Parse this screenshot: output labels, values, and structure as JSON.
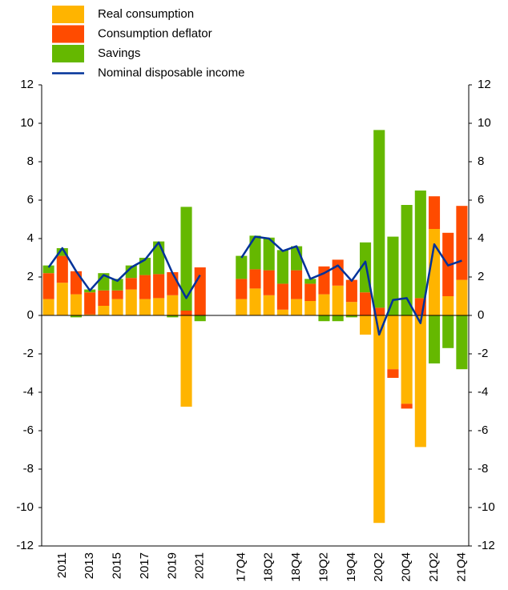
{
  "chart_data": {
    "type": "bar",
    "stacked": true,
    "categories": [
      null,
      "2011",
      null,
      "2013",
      null,
      "2015",
      null,
      "2017",
      null,
      "2019",
      null,
      "2021",
      null,
      null,
      "17Q4",
      null,
      "18Q2",
      null,
      "18Q4",
      null,
      "19Q2",
      null,
      "19Q4",
      null,
      "20Q2",
      null,
      "20Q4",
      null,
      "21Q2",
      null,
      "21Q4"
    ],
    "series": [
      {
        "name": "Real consumption",
        "type": "bar",
        "color": "#ffb400",
        "values": [
          0.85,
          1.7,
          1.1,
          0.05,
          0.5,
          0.85,
          1.35,
          0.85,
          0.9,
          1.05,
          -4.75,
          0,
          null,
          null,
          0.85,
          1.4,
          1.05,
          0.3,
          0.85,
          0.75,
          1.1,
          1.55,
          0.7,
          -1.0,
          -10.8,
          -2.8,
          -4.6,
          -6.85,
          4.5,
          1.0,
          1.85
        ]
      },
      {
        "name": "Consumption deflator",
        "type": "bar",
        "color": "#ff4b00",
        "values": [
          1.35,
          1.4,
          1.2,
          1.15,
          0.8,
          0.45,
          0.6,
          1.25,
          1.25,
          1.2,
          0.25,
          2.5,
          null,
          null,
          1.05,
          1.0,
          1.3,
          1.35,
          1.5,
          0.9,
          1.45,
          1.35,
          1.15,
          1.2,
          0.4,
          -0.45,
          -0.25,
          0.9,
          1.7,
          3.3,
          3.85
        ]
      },
      {
        "name": "Savings",
        "type": "bar",
        "color": "#65b800",
        "values": [
          0.4,
          0.4,
          -0.1,
          0.15,
          0.9,
          0.6,
          0.65,
          0.9,
          1.7,
          -0.1,
          5.4,
          -0.3,
          null,
          null,
          1.2,
          1.75,
          1.7,
          1.75,
          1.25,
          0.25,
          -0.3,
          -0.3,
          -0.1,
          2.6,
          9.25,
          4.1,
          5.75,
          5.6,
          -2.5,
          -1.7,
          -2.8
        ]
      },
      {
        "name": "Nominal disposable income",
        "type": "line",
        "color": "#003299",
        "values": [
          2.5,
          3.5,
          2.3,
          1.3,
          2.1,
          1.8,
          2.5,
          2.9,
          3.8,
          2.2,
          0.9,
          2.1,
          null,
          null,
          3.0,
          4.1,
          4.0,
          3.35,
          3.6,
          1.9,
          2.2,
          2.6,
          1.8,
          2.8,
          -1.0,
          0.8,
          0.9,
          -0.4,
          3.7,
          2.6,
          2.85
        ]
      }
    ],
    "ylim": [
      -12,
      12
    ],
    "y2lim": [
      -12,
      12
    ],
    "yticks": [
      -12,
      -10,
      -8,
      -6,
      -4,
      -2,
      0,
      2,
      4,
      6,
      8,
      10,
      12
    ],
    "y2ticks": [
      -12,
      -10,
      -8,
      -6,
      -4,
      -2,
      0,
      2,
      4,
      6,
      8,
      10,
      12
    ],
    "legend": "top-left"
  }
}
